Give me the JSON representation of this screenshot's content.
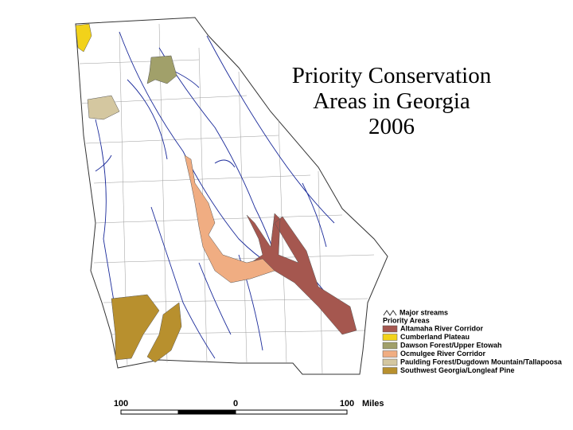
{
  "title": [
    "Priority Conservation",
    "Areas in Georgia",
    "2006"
  ],
  "legend": {
    "streams": "Major streams",
    "heading": "Priority Areas",
    "items": [
      {
        "label": "Altamaha River Corridor",
        "color": "#a5574f"
      },
      {
        "label": "Cumberland Plateau",
        "color": "#f2d21a"
      },
      {
        "label": "Dawson Forest/Upper Etowah",
        "color": "#a1a06a"
      },
      {
        "label": "Ocmulgee River Corridor",
        "color": "#f0ad82"
      },
      {
        "label": "Paulding Forest/Dugdown Mountain/Tallapoosa",
        "color": "#d4c7a0"
      },
      {
        "label": "Southwest Georgia/Longleaf Pine",
        "color": "#b8902e"
      }
    ]
  },
  "scale_bar": {
    "labels": [
      "100",
      "0",
      "100"
    ],
    "unit": "Miles"
  }
}
